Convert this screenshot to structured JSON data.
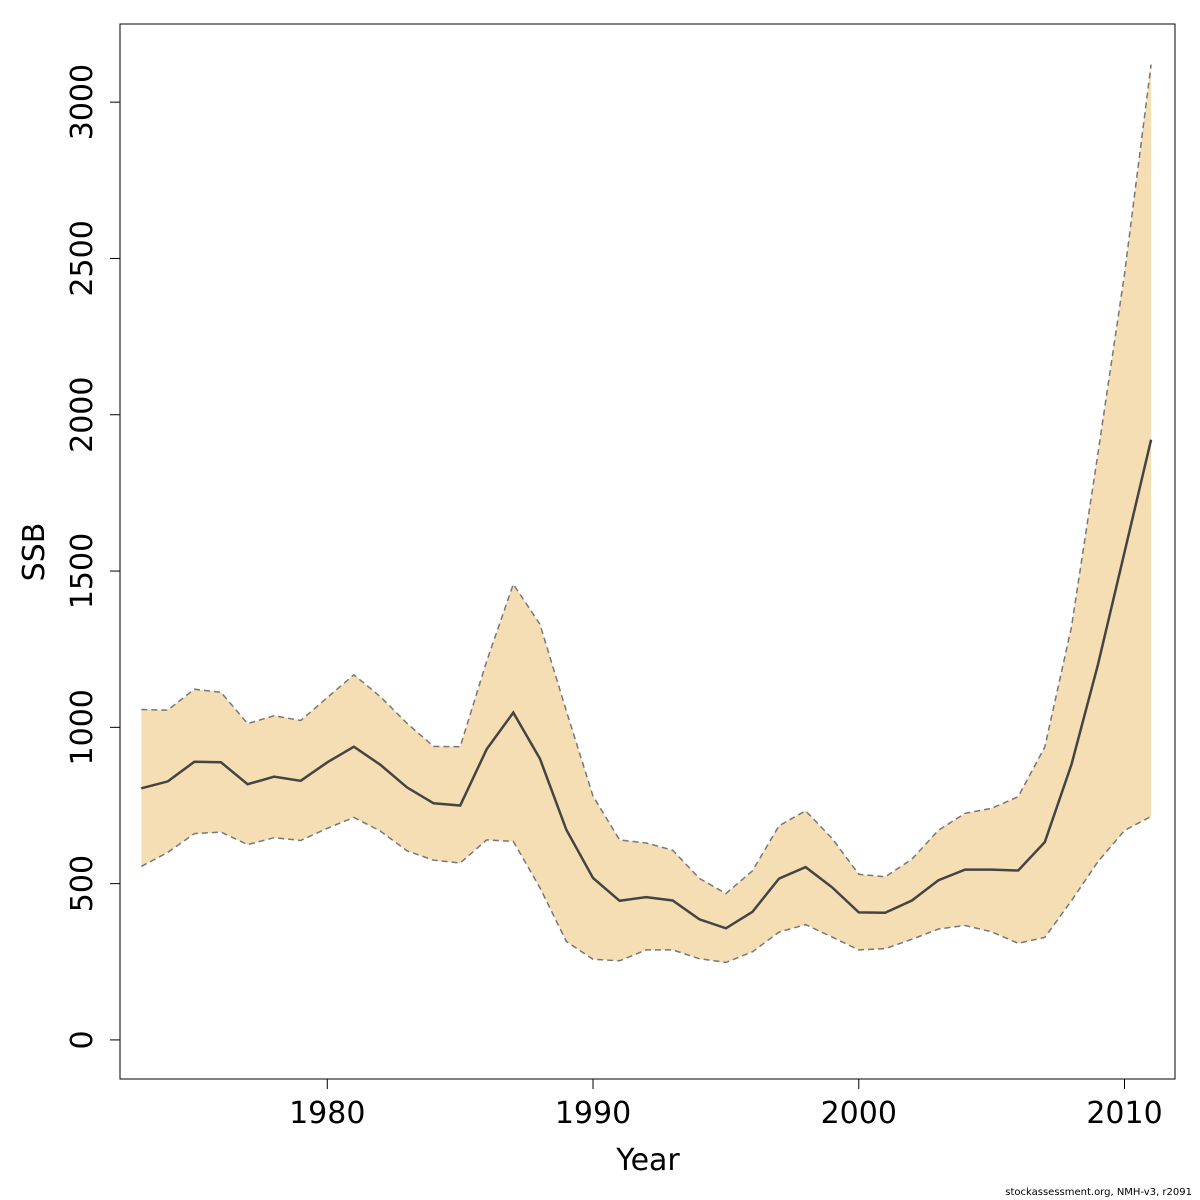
{
  "chart_data": {
    "type": "area",
    "xlabel": "Year",
    "ylabel": "SSB",
    "xlim": [
      1972.2,
      2011.9
    ],
    "ylim": [
      -125,
      3250
    ],
    "x_ticks": [
      1980,
      1990,
      2000,
      2010
    ],
    "y_ticks": [
      0,
      500,
      1000,
      1500,
      2000,
      2500,
      3000
    ],
    "grid": false,
    "legend": "none",
    "colors": {
      "band": "#f5deb3",
      "line": "#444444",
      "bound": "#777777"
    },
    "x": [
      1973,
      1974,
      1975,
      1976,
      1977,
      1978,
      1979,
      1980,
      1981,
      1982,
      1983,
      1984,
      1985,
      1986,
      1987,
      1988,
      1989,
      1990,
      1991,
      1992,
      1993,
      1994,
      1995,
      1996,
      1997,
      1998,
      1999,
      2000,
      2001,
      2002,
      2003,
      2004,
      2005,
      2006,
      2007,
      2008,
      2009,
      2010,
      2011
    ],
    "series": [
      {
        "role": "estimate",
        "values": [
          805,
          827,
          890,
          888,
          818,
          842,
          829,
          888,
          938,
          880,
          808,
          757,
          750,
          930,
          1047,
          900,
          672,
          518,
          445,
          457,
          446,
          386,
          357,
          410,
          516,
          553,
          488,
          408,
          407,
          446,
          511,
          545,
          545,
          542,
          633,
          880,
          1200,
          1560,
          1920
        ]
      },
      {
        "role": "upper",
        "values": [
          1057,
          1055,
          1122,
          1112,
          1012,
          1037,
          1022,
          1095,
          1168,
          1098,
          1013,
          939,
          938,
          1212,
          1458,
          1330,
          1052,
          780,
          640,
          630,
          607,
          517,
          468,
          541,
          685,
          733,
          644,
          530,
          522,
          578,
          671,
          725,
          741,
          778,
          937,
          1320,
          1875,
          2450,
          3120
        ]
      },
      {
        "role": "lower",
        "values": [
          555,
          600,
          660,
          665,
          625,
          647,
          638,
          677,
          712,
          668,
          605,
          575,
          566,
          640,
          635,
          487,
          315,
          258,
          253,
          288,
          288,
          260,
          248,
          282,
          345,
          369,
          329,
          288,
          292,
          322,
          355,
          366,
          346,
          309,
          328,
          445,
          570,
          670,
          715
        ]
      }
    ]
  },
  "footer": "stockassessment.org, NMH-v3, r2091"
}
